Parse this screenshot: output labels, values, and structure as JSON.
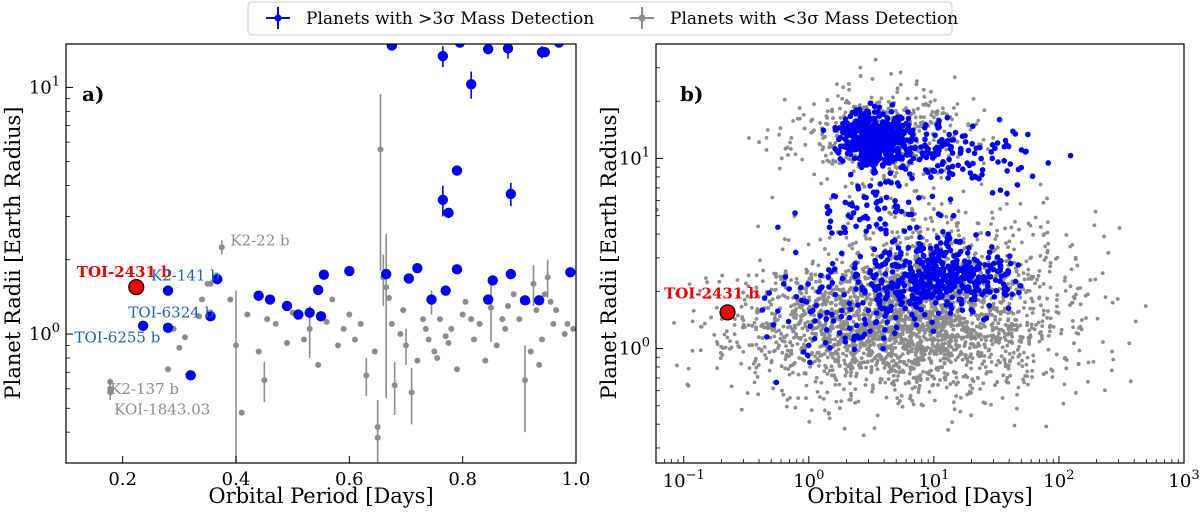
{
  "legend": {
    "high": "Planets with >3σ Mass Detection",
    "low": "Planets with <3σ Mass Detection",
    "high_color": "#0000ee",
    "low_color": "#8c8c8c"
  },
  "highlight_color": "#ee0000",
  "chart_data": [
    {
      "type": "scatter",
      "panel_label": "a)",
      "xlabel": "Orbital Period [Days]",
      "ylabel": "Planet Radii [Earth Radius]",
      "xscale": "linear",
      "yscale": "log",
      "xlim": [
        0.1,
        1.0
      ],
      "ylim": [
        0.3,
        15
      ],
      "xticks": [
        0.2,
        0.4,
        0.6,
        0.8,
        1.0
      ],
      "xtick_labels": [
        "0.2",
        "0.4",
        "0.6",
        "0.8",
        "1.0"
      ],
      "yticks": [
        1,
        10
      ],
      "ytick_base": "10",
      "ytick_exps": [
        "0",
        "1"
      ],
      "series": [
        {
          "name": "Planets with >3σ Mass Detection",
          "points": [
            [
              0.236,
              1.08
            ],
            [
              0.28,
              1.5
            ],
            [
              0.28,
              1.06
            ],
            [
              0.32,
              0.68
            ],
            [
              0.355,
              1.18
            ],
            [
              0.367,
              1.67
            ],
            [
              0.44,
              1.43
            ],
            [
              0.46,
              1.38
            ],
            [
              0.49,
              1.3
            ],
            [
              0.51,
              1.2
            ],
            [
              0.53,
              1.22
            ],
            [
              0.545,
              1.51
            ],
            [
              0.55,
              1.18
            ],
            [
              0.555,
              1.74
            ],
            [
              0.6,
              1.8
            ],
            [
              0.665,
              1.75
            ],
            [
              0.705,
              1.68
            ],
            [
              0.72,
              1.85
            ],
            [
              0.745,
              1.38
            ],
            [
              0.77,
              1.5
            ],
            [
              0.79,
              1.83
            ],
            [
              0.845,
              1.38
            ],
            [
              0.853,
              1.65
            ],
            [
              0.885,
              1.75
            ],
            [
              0.91,
              1.37
            ],
            [
              0.935,
              1.37
            ],
            [
              0.99,
              1.78
            ],
            [
              0.765,
              3.5
            ],
            [
              0.775,
              3.1
            ],
            [
              0.79,
              4.6
            ],
            [
              0.885,
              3.7
            ],
            [
              0.815,
              10.3
            ],
            [
              0.765,
              13.4
            ],
            [
              0.845,
              14.3
            ],
            [
              0.88,
              14.4
            ],
            [
              0.94,
              13.9
            ],
            [
              0.945,
              13.9
            ],
            [
              0.675,
              14.8
            ],
            [
              0.795,
              15.2
            ],
            [
              0.97,
              15.2
            ]
          ],
          "errors": [
            [
              0.765,
              3.5,
              0.5
            ],
            [
              0.815,
              10.3,
              1.3
            ],
            [
              0.765,
              13.4,
              1.3
            ],
            [
              0.88,
              14.4,
              1.3
            ],
            [
              0.885,
              3.7,
              0.4
            ],
            [
              0.94,
              13.9,
              0.8
            ]
          ]
        },
        {
          "name": "Planets with <3σ Mass Detection",
          "points": [
            [
              0.178,
              0.6
            ],
            [
              0.178,
              0.58
            ],
            [
              0.178,
              0.64
            ],
            [
              0.28,
              0.72
            ],
            [
              0.29,
              1.05
            ],
            [
              0.3,
              0.88
            ],
            [
              0.31,
              0.97
            ],
            [
              0.335,
              1.18
            ],
            [
              0.34,
              1.38
            ],
            [
              0.35,
              1.6
            ],
            [
              0.355,
              1.6
            ],
            [
              0.375,
              2.25
            ],
            [
              0.39,
              1.38
            ],
            [
              0.4,
              0.9
            ],
            [
              0.41,
              0.48
            ],
            [
              0.42,
              1.2
            ],
            [
              0.44,
              0.85
            ],
            [
              0.45,
              0.65
            ],
            [
              0.455,
              1.15
            ],
            [
              0.47,
              1.1
            ],
            [
              0.49,
              0.92
            ],
            [
              0.5,
              1.22
            ],
            [
              0.52,
              0.95
            ],
            [
              0.53,
              1.05
            ],
            [
              0.545,
              0.75
            ],
            [
              0.56,
              1.12
            ],
            [
              0.57,
              1.38
            ],
            [
              0.58,
              0.9
            ],
            [
              0.59,
              1.05
            ],
            [
              0.6,
              1.2
            ],
            [
              0.61,
              0.95
            ],
            [
              0.62,
              1.1
            ],
            [
              0.63,
              0.68
            ],
            [
              0.645,
              0.85
            ],
            [
              0.65,
              0.42
            ],
            [
              0.65,
              0.38
            ],
            [
              0.655,
              5.6
            ],
            [
              0.66,
              1.7
            ],
            [
              0.665,
              1.55
            ],
            [
              0.67,
              1.4
            ],
            [
              0.675,
              1.1
            ],
            [
              0.68,
              0.62
            ],
            [
              0.69,
              1.0
            ],
            [
              0.695,
              1.25
            ],
            [
              0.7,
              0.9
            ],
            [
              0.71,
              0.58
            ],
            [
              0.72,
              0.78
            ],
            [
              0.73,
              1.15
            ],
            [
              0.735,
              1.05
            ],
            [
              0.74,
              0.95
            ],
            [
              0.745,
              1.35
            ],
            [
              0.75,
              0.85
            ],
            [
              0.755,
              0.8
            ],
            [
              0.76,
              1.15
            ],
            [
              0.77,
              0.98
            ],
            [
              0.775,
              0.92
            ],
            [
              0.78,
              1.05
            ],
            [
              0.79,
              0.72
            ],
            [
              0.8,
              1.2
            ],
            [
              0.805,
              1.35
            ],
            [
              0.815,
              1.15
            ],
            [
              0.82,
              0.95
            ],
            [
              0.83,
              1.1
            ],
            [
              0.84,
              0.78
            ],
            [
              0.85,
              1.28
            ],
            [
              0.86,
              0.9
            ],
            [
              0.87,
              1.15
            ],
            [
              0.875,
              1.05
            ],
            [
              0.88,
              1.3
            ],
            [
              0.89,
              1.45
            ],
            [
              0.9,
              1.15
            ],
            [
              0.91,
              0.65
            ],
            [
              0.915,
              1.35
            ],
            [
              0.92,
              0.85
            ],
            [
              0.925,
              1.6
            ],
            [
              0.93,
              1.25
            ],
            [
              0.935,
              0.75
            ],
            [
              0.94,
              0.95
            ],
            [
              0.945,
              1.45
            ],
            [
              0.95,
              1.7
            ],
            [
              0.955,
              1.35
            ],
            [
              0.96,
              1.1
            ],
            [
              0.965,
              1.25
            ],
            [
              0.98,
              1.0
            ],
            [
              0.985,
              1.1
            ],
            [
              0.995,
              1.05
            ]
          ],
          "errors": [
            [
              0.178,
              0.6,
              0.06
            ],
            [
              0.375,
              2.25,
              0.15
            ],
            [
              0.4,
              0.9,
              0.6
            ],
            [
              0.45,
              0.65,
              0.12
            ],
            [
              0.53,
              1.05,
              0.25
            ],
            [
              0.63,
              0.68,
              0.12
            ],
            [
              0.65,
              0.42,
              0.12
            ],
            [
              0.655,
              5.6,
              3.8
            ],
            [
              0.66,
              1.7,
              0.4
            ],
            [
              0.665,
              1.55,
              1.0
            ],
            [
              0.68,
              0.62,
              0.15
            ],
            [
              0.7,
              0.9,
              0.15
            ],
            [
              0.71,
              0.58,
              0.15
            ],
            [
              0.745,
              1.35,
              0.15
            ],
            [
              0.85,
              1.28,
              0.35
            ],
            [
              0.91,
              0.65,
              0.25
            ],
            [
              0.925,
              1.6,
              0.3
            ],
            [
              0.95,
              1.7,
              0.3
            ]
          ]
        }
      ],
      "highlight": {
        "name": "TOI-2431 b",
        "x": 0.224,
        "y": 1.55
      },
      "annotations": [
        {
          "text": "K2-141 b",
          "x": 0.25,
          "y": 1.73,
          "color": "#1f5fa8"
        },
        {
          "text": "K2-22 b",
          "x": 0.39,
          "y": 2.4,
          "color": "#8c8c8c"
        },
        {
          "text": "TOI-6324 b",
          "x": 0.21,
          "y": 1.22,
          "color": "#1f5fa8"
        },
        {
          "text": "TOI-6255  b",
          "x": 0.115,
          "y": 0.97,
          "color": "#1f5fa8"
        },
        {
          "text": "K2-137 b",
          "x": 0.178,
          "y": 0.6,
          "color": "#8c8c8c"
        },
        {
          "text": "KOI-1843.03",
          "x": 0.185,
          "y": 0.495,
          "color": "#8c8c8c"
        }
      ]
    },
    {
      "type": "scatter",
      "panel_label": "b)",
      "xlabel": "Orbital Period [Days]",
      "ylabel": "Planet Radii [Earth Radius]",
      "xscale": "log",
      "yscale": "log",
      "xlim": [
        0.06,
        1000
      ],
      "ylim": [
        0.25,
        40
      ],
      "xticks": [
        0.1,
        1,
        10,
        100,
        1000
      ],
      "xtick_base": "10",
      "xtick_exps": [
        "−1",
        "0",
        "1",
        "2",
        "3"
      ],
      "yticks": [
        1,
        10
      ],
      "ytick_base": "10",
      "ytick_exps": [
        "0",
        "1"
      ],
      "highlight": {
        "name": "TOI-2431 b",
        "x": 0.224,
        "y": 1.55
      },
      "clusters": [
        {
          "series": "Planets with <3σ Mass Detection",
          "count": 2300,
          "logx": [
            0.7,
            0.62
          ],
          "logy": [
            0.12,
            0.18
          ],
          "seed": 11
        },
        {
          "series": "Planets with <3σ Mass Detection",
          "count": 450,
          "logx": [
            0.55,
            0.35
          ],
          "logy": [
            1.12,
            0.13
          ],
          "seed": 23
        },
        {
          "series": "Planets with <3σ Mass Detection",
          "count": 450,
          "logx": [
            1.05,
            0.5
          ],
          "logy": [
            0.4,
            0.22
          ],
          "seed": 29
        },
        {
          "series": "Planets with >3σ Mass Detection",
          "count": 450,
          "logx": [
            0.52,
            0.13
          ],
          "logy": [
            1.12,
            0.07
          ],
          "seed": 37
        },
        {
          "series": "Planets with >3σ Mass Detection",
          "count": 160,
          "logx": [
            1.1,
            0.38
          ],
          "logy": [
            1.02,
            0.08
          ],
          "seed": 41
        },
        {
          "series": "Planets with >3σ Mass Detection",
          "count": 420,
          "logx": [
            1.05,
            0.3
          ],
          "logy": [
            0.38,
            0.09
          ],
          "seed": 43
        },
        {
          "series": "Planets with >3σ Mass Detection",
          "count": 110,
          "logx": [
            0.3,
            0.35
          ],
          "logy": [
            0.2,
            0.12
          ],
          "seed": 47
        },
        {
          "series": "Planets with >3σ Mass Detection",
          "count": 90,
          "logx": [
            0.55,
            0.3
          ],
          "logy": [
            0.7,
            0.12
          ],
          "seed": 53
        }
      ]
    }
  ]
}
